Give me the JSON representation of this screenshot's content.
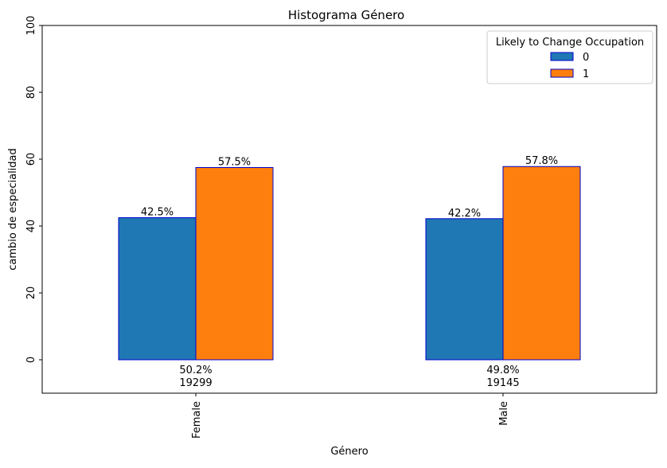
{
  "chart_data": {
    "type": "bar",
    "title": "Histograma Género",
    "xlabel": "Género",
    "ylabel": "cambio de especialidad",
    "categories": [
      "Female",
      "Male"
    ],
    "ylim": [
      -10,
      100
    ],
    "yticks": [
      0,
      20,
      40,
      60,
      80,
      100
    ],
    "grid": false,
    "legend": {
      "title": "Likely to Change Occupation",
      "placement": "top-right"
    },
    "series": [
      {
        "name": "0",
        "color": "#1f77b4",
        "values": [
          42.5,
          42.2
        ],
        "labels": [
          "42.5%",
          "42.2%"
        ]
      },
      {
        "name": "1",
        "color": "#ff7f0e",
        "values": [
          57.5,
          57.8
        ],
        "labels": [
          "57.5%",
          "57.8%"
        ]
      }
    ],
    "bar_edge_color": "#0000cc",
    "category_annotations": [
      {
        "percent": "50.2%",
        "count": "19299"
      },
      {
        "percent": "49.8%",
        "count": "19145"
      }
    ]
  }
}
